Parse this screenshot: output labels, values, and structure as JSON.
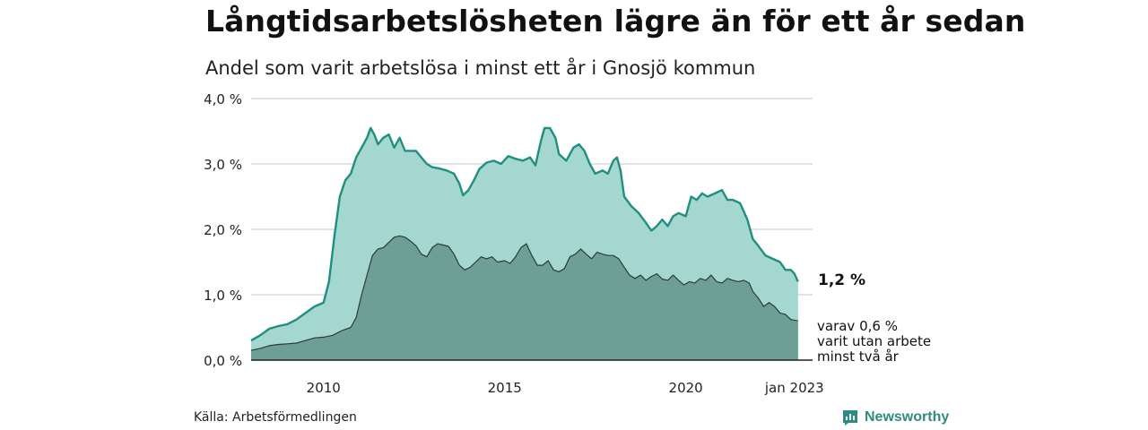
{
  "header": {
    "title": "Långtidsarbetslösheten lägre än för ett år sedan",
    "subtitle": "Andel som varit arbetslösa i minst ett år i Gnosjö kommun"
  },
  "annotations": {
    "main_value": "1,2 %",
    "sub_line1": "varav 0,6 %",
    "sub_line2": "varit utan arbete",
    "sub_line3": "minst två år"
  },
  "footer": {
    "source": "Källa: Arbetsförmedlingen",
    "brand": "Newsworthy"
  },
  "colors": {
    "upper_fill": "#a3d7cf",
    "upper_line": "#1f8f80",
    "lower_fill": "#6d9f97",
    "lower_line": "#2b3b38",
    "grid": "#d9d9d9",
    "brand": "#2e8c80"
  },
  "chart_data": {
    "type": "area",
    "ylim": [
      0,
      4
    ],
    "xlim": [
      2008.0,
      2023.5
    ],
    "y_ticks": [
      0,
      1,
      2,
      3,
      4
    ],
    "y_tick_labels": [
      "0,0 %",
      "1,0 %",
      "2,0 %",
      "3,0 %",
      "4,0 %"
    ],
    "x_ticks": [
      2010,
      2015,
      2020,
      2023
    ],
    "x_tick_labels": [
      "2010",
      "2015",
      "2020",
      "jan 2023"
    ],
    "grid": true,
    "series": [
      {
        "key": "minst_ett_ar",
        "points": [
          [
            2008.0,
            0.3
          ],
          [
            2008.25,
            0.38
          ],
          [
            2008.5,
            0.48
          ],
          [
            2008.75,
            0.52
          ],
          [
            2009.0,
            0.55
          ],
          [
            2009.25,
            0.62
          ],
          [
            2009.5,
            0.72
          ],
          [
            2009.75,
            0.82
          ],
          [
            2010.0,
            0.88
          ],
          [
            2010.15,
            1.2
          ],
          [
            2010.3,
            1.9
          ],
          [
            2010.45,
            2.5
          ],
          [
            2010.6,
            2.75
          ],
          [
            2010.75,
            2.85
          ],
          [
            2010.9,
            3.1
          ],
          [
            2011.05,
            3.25
          ],
          [
            2011.2,
            3.4
          ],
          [
            2011.3,
            3.55
          ],
          [
            2011.4,
            3.45
          ],
          [
            2011.5,
            3.3
          ],
          [
            2011.65,
            3.4
          ],
          [
            2011.8,
            3.45
          ],
          [
            2011.95,
            3.25
          ],
          [
            2012.1,
            3.4
          ],
          [
            2012.25,
            3.2
          ],
          [
            2012.4,
            3.2
          ],
          [
            2012.55,
            3.2
          ],
          [
            2012.7,
            3.1
          ],
          [
            2012.85,
            3.0
          ],
          [
            2013.0,
            2.95
          ],
          [
            2013.2,
            2.93
          ],
          [
            2013.4,
            2.9
          ],
          [
            2013.6,
            2.85
          ],
          [
            2013.75,
            2.7
          ],
          [
            2013.85,
            2.52
          ],
          [
            2014.0,
            2.6
          ],
          [
            2014.15,
            2.75
          ],
          [
            2014.3,
            2.92
          ],
          [
            2014.5,
            3.02
          ],
          [
            2014.7,
            3.05
          ],
          [
            2014.9,
            3.0
          ],
          [
            2015.1,
            3.12
          ],
          [
            2015.3,
            3.08
          ],
          [
            2015.5,
            3.05
          ],
          [
            2015.7,
            3.1
          ],
          [
            2015.85,
            2.98
          ],
          [
            2016.0,
            3.35
          ],
          [
            2016.1,
            3.55
          ],
          [
            2016.25,
            3.55
          ],
          [
            2016.4,
            3.4
          ],
          [
            2016.5,
            3.15
          ],
          [
            2016.7,
            3.05
          ],
          [
            2016.9,
            3.25
          ],
          [
            2017.05,
            3.3
          ],
          [
            2017.2,
            3.2
          ],
          [
            2017.35,
            3.0
          ],
          [
            2017.5,
            2.85
          ],
          [
            2017.7,
            2.9
          ],
          [
            2017.85,
            2.85
          ],
          [
            2018.0,
            3.05
          ],
          [
            2018.1,
            3.1
          ],
          [
            2018.2,
            2.9
          ],
          [
            2018.3,
            2.5
          ],
          [
            2018.5,
            2.35
          ],
          [
            2018.7,
            2.25
          ],
          [
            2018.9,
            2.1
          ],
          [
            2019.05,
            1.98
          ],
          [
            2019.2,
            2.05
          ],
          [
            2019.35,
            2.15
          ],
          [
            2019.5,
            2.05
          ],
          [
            2019.65,
            2.2
          ],
          [
            2019.8,
            2.25
          ],
          [
            2020.0,
            2.2
          ],
          [
            2020.15,
            2.5
          ],
          [
            2020.3,
            2.45
          ],
          [
            2020.45,
            2.55
          ],
          [
            2020.6,
            2.5
          ],
          [
            2020.8,
            2.55
          ],
          [
            2021.0,
            2.6
          ],
          [
            2021.15,
            2.45
          ],
          [
            2021.3,
            2.45
          ],
          [
            2021.5,
            2.4
          ],
          [
            2021.7,
            2.15
          ],
          [
            2021.85,
            1.85
          ],
          [
            2022.0,
            1.75
          ],
          [
            2022.2,
            1.6
          ],
          [
            2022.4,
            1.55
          ],
          [
            2022.6,
            1.5
          ],
          [
            2022.75,
            1.38
          ],
          [
            2022.9,
            1.38
          ],
          [
            2023.0,
            1.32
          ],
          [
            2023.1,
            1.2
          ]
        ]
      },
      {
        "key": "minst_tva_ar",
        "points": [
          [
            2008.0,
            0.15
          ],
          [
            2008.25,
            0.18
          ],
          [
            2008.5,
            0.22
          ],
          [
            2008.75,
            0.24
          ],
          [
            2009.0,
            0.25
          ],
          [
            2009.25,
            0.26
          ],
          [
            2009.5,
            0.3
          ],
          [
            2009.75,
            0.34
          ],
          [
            2010.0,
            0.35
          ],
          [
            2010.25,
            0.38
          ],
          [
            2010.5,
            0.45
          ],
          [
            2010.75,
            0.5
          ],
          [
            2010.9,
            0.65
          ],
          [
            2011.05,
            1.0
          ],
          [
            2011.2,
            1.3
          ],
          [
            2011.35,
            1.6
          ],
          [
            2011.5,
            1.7
          ],
          [
            2011.65,
            1.72
          ],
          [
            2011.8,
            1.8
          ],
          [
            2011.95,
            1.88
          ],
          [
            2012.1,
            1.9
          ],
          [
            2012.25,
            1.88
          ],
          [
            2012.4,
            1.82
          ],
          [
            2012.55,
            1.75
          ],
          [
            2012.7,
            1.62
          ],
          [
            2012.85,
            1.58
          ],
          [
            2013.0,
            1.72
          ],
          [
            2013.15,
            1.78
          ],
          [
            2013.3,
            1.76
          ],
          [
            2013.45,
            1.74
          ],
          [
            2013.6,
            1.62
          ],
          [
            2013.75,
            1.45
          ],
          [
            2013.9,
            1.38
          ],
          [
            2014.05,
            1.42
          ],
          [
            2014.2,
            1.5
          ],
          [
            2014.35,
            1.58
          ],
          [
            2014.5,
            1.55
          ],
          [
            2014.65,
            1.58
          ],
          [
            2014.8,
            1.5
          ],
          [
            2015.0,
            1.52
          ],
          [
            2015.15,
            1.48
          ],
          [
            2015.3,
            1.58
          ],
          [
            2015.45,
            1.72
          ],
          [
            2015.6,
            1.78
          ],
          [
            2015.75,
            1.6
          ],
          [
            2015.9,
            1.45
          ],
          [
            2016.05,
            1.45
          ],
          [
            2016.2,
            1.52
          ],
          [
            2016.35,
            1.38
          ],
          [
            2016.5,
            1.35
          ],
          [
            2016.65,
            1.4
          ],
          [
            2016.8,
            1.58
          ],
          [
            2016.95,
            1.62
          ],
          [
            2017.1,
            1.7
          ],
          [
            2017.25,
            1.62
          ],
          [
            2017.4,
            1.55
          ],
          [
            2017.55,
            1.65
          ],
          [
            2017.7,
            1.62
          ],
          [
            2017.85,
            1.6
          ],
          [
            2018.0,
            1.6
          ],
          [
            2018.15,
            1.55
          ],
          [
            2018.3,
            1.42
          ],
          [
            2018.45,
            1.3
          ],
          [
            2018.6,
            1.25
          ],
          [
            2018.75,
            1.3
          ],
          [
            2018.9,
            1.22
          ],
          [
            2019.05,
            1.28
          ],
          [
            2019.2,
            1.32
          ],
          [
            2019.35,
            1.24
          ],
          [
            2019.5,
            1.22
          ],
          [
            2019.65,
            1.3
          ],
          [
            2019.8,
            1.22
          ],
          [
            2019.95,
            1.15
          ],
          [
            2020.1,
            1.2
          ],
          [
            2020.25,
            1.18
          ],
          [
            2020.4,
            1.25
          ],
          [
            2020.55,
            1.22
          ],
          [
            2020.7,
            1.3
          ],
          [
            2020.85,
            1.2
          ],
          [
            2021.0,
            1.18
          ],
          [
            2021.15,
            1.25
          ],
          [
            2021.3,
            1.22
          ],
          [
            2021.45,
            1.2
          ],
          [
            2021.6,
            1.22
          ],
          [
            2021.75,
            1.18
          ],
          [
            2021.85,
            1.05
          ],
          [
            2022.0,
            0.95
          ],
          [
            2022.15,
            0.82
          ],
          [
            2022.3,
            0.88
          ],
          [
            2022.45,
            0.82
          ],
          [
            2022.6,
            0.72
          ],
          [
            2022.75,
            0.7
          ],
          [
            2022.9,
            0.62
          ],
          [
            2023.1,
            0.6
          ]
        ]
      }
    ]
  }
}
